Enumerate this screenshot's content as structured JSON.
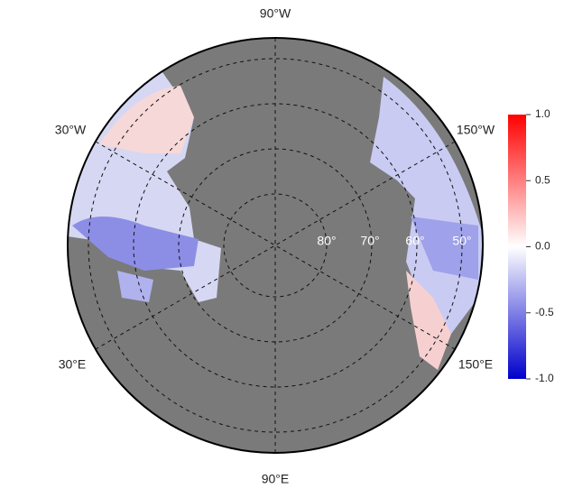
{
  "map": {
    "longitude_labels": [
      "90°W",
      "30°W",
      "150°W",
      "30°E",
      "150°E",
      "90°E"
    ],
    "latitude_labels": [
      "80°",
      "70°",
      "60°",
      "50°"
    ],
    "colorbar": {
      "lim": [
        -1.0,
        1.0
      ],
      "ticks": [
        {
          "value": 1.0,
          "label": "1.0"
        },
        {
          "value": 0.5,
          "label": "0.5"
        },
        {
          "value": 0.0,
          "label": "0.0"
        },
        {
          "value": -0.5,
          "label": "-0.5"
        },
        {
          "value": -1.0,
          "label": "-1.0"
        }
      ]
    }
  }
}
